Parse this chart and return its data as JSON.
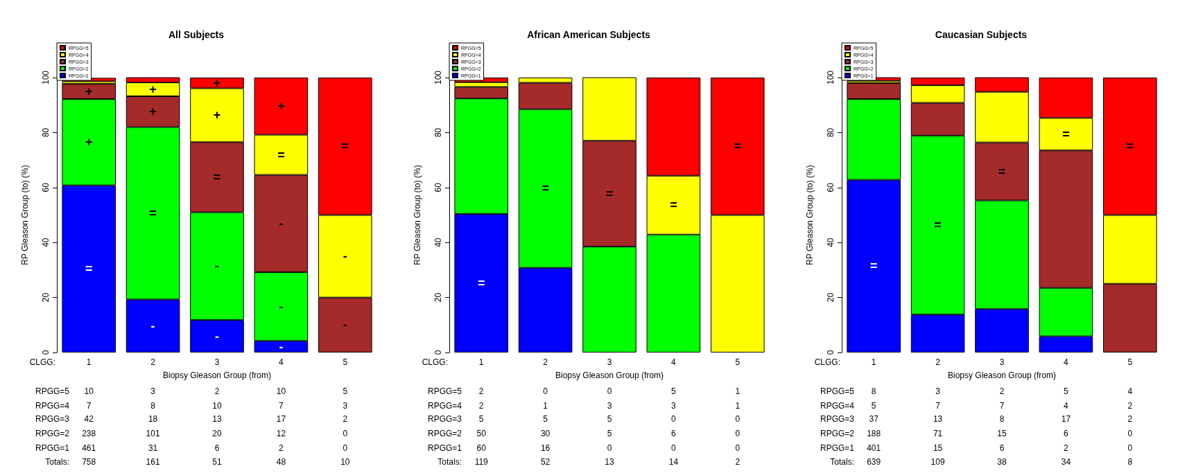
{
  "chart_data": [
    {
      "type": "bar",
      "title": "All Subjects",
      "xlabel": "Biopsy Gleason Group (from)",
      "ylabel": "RP Gleason Group (to) (%)",
      "categories": [
        "1",
        "2",
        "3",
        "4",
        "5"
      ],
      "stacked": true,
      "ylim": [
        0,
        100
      ],
      "yticks": [
        0,
        20,
        40,
        60,
        80,
        100
      ],
      "legend": "top left",
      "series": [
        {
          "name": "RPGG=1",
          "color": "#0000ff",
          "values": [
            60.8,
            19.3,
            11.8,
            4.2,
            0
          ],
          "value_labels": [
            "=",
            "-",
            "-",
            "-",
            null
          ]
        },
        {
          "name": "RPGG=2",
          "color": "#00ff00",
          "values": [
            31.4,
            62.7,
            39.2,
            25.0,
            0
          ],
          "value_labels": [
            "+",
            "=",
            "-",
            "-",
            null
          ]
        },
        {
          "name": "RPGG=3",
          "color": "#a52a2a",
          "values": [
            5.5,
            11.2,
            25.5,
            35.4,
            20
          ],
          "value_labels": [
            "+",
            "+",
            "=",
            "-",
            "-"
          ]
        },
        {
          "name": "RPGG=4",
          "color": "#ffff00",
          "values": [
            0.9,
            5.0,
            19.6,
            14.6,
            30
          ],
          "value_labels": [
            null,
            "+",
            "+",
            "=",
            "-"
          ]
        },
        {
          "name": "RPGG=5",
          "color": "#ff0000",
          "values": [
            1.3,
            1.9,
            3.9,
            20.8,
            50
          ],
          "value_labels": [
            null,
            null,
            "+",
            "+",
            "="
          ]
        }
      ],
      "annotations": [
        "CLGG:",
        "RPGG=5",
        "10",
        "3",
        "2",
        "10",
        "5",
        "RPGG=4",
        "7",
        "8",
        "10",
        "7",
        "3",
        "RPGG=3",
        "42",
        "18",
        "13",
        "17",
        "2",
        "RPGG=2",
        "238",
        "101",
        "20",
        "12",
        "0",
        "RPGG=1",
        "461",
        "31",
        "6",
        "2",
        "0",
        "Totals:",
        "758",
        "161",
        "51",
        "48",
        "10"
      ]
    },
    {
      "type": "bar",
      "title": "African American Subjects",
      "xlabel": "Biopsy Gleason Group (from)",
      "ylabel": "RP Gleason Group (to) (%)",
      "categories": [
        "1",
        "2",
        "3",
        "4",
        "5"
      ],
      "stacked": true,
      "ylim": [
        0,
        100
      ],
      "yticks": [
        0,
        20,
        40,
        60,
        80,
        100
      ],
      "legend": "top left",
      "series": [
        {
          "name": "RPGG=1",
          "color": "#0000ff",
          "values": [
            50.4,
            30.8,
            0,
            0,
            0
          ],
          "value_labels": [
            "=",
            null,
            null,
            null,
            null
          ]
        },
        {
          "name": "RPGG=2",
          "color": "#00ff00",
          "values": [
            42.0,
            57.7,
            38.5,
            42.9,
            0
          ],
          "value_labels": [
            null,
            "=",
            null,
            null,
            null
          ]
        },
        {
          "name": "RPGG=3",
          "color": "#a52a2a",
          "values": [
            4.2,
            9.6,
            38.5,
            0,
            0
          ],
          "value_labels": [
            null,
            null,
            "=",
            null,
            null
          ]
        },
        {
          "name": "RPGG=4",
          "color": "#ffff00",
          "values": [
            1.7,
            1.9,
            23.1,
            21.4,
            50
          ],
          "value_labels": [
            null,
            null,
            null,
            "=",
            null
          ]
        },
        {
          "name": "RPGG=5",
          "color": "#ff0000",
          "values": [
            1.7,
            0,
            0,
            35.7,
            50
          ],
          "value_labels": [
            null,
            null,
            null,
            null,
            "="
          ]
        }
      ],
      "annotations": [
        "CLGG:",
        "RPGG=5",
        "2",
        "0",
        "0",
        "5",
        "1",
        "RPGG=4",
        "2",
        "1",
        "3",
        "3",
        "1",
        "RPGG=3",
        "5",
        "5",
        "5",
        "0",
        "0",
        "RPGG=2",
        "50",
        "30",
        "5",
        "6",
        "0",
        "RPGG=1",
        "60",
        "16",
        "0",
        "0",
        "0",
        "Totals:",
        "119",
        "52",
        "13",
        "14",
        "2"
      ]
    },
    {
      "type": "bar",
      "title": "Caucasian Subjects",
      "xlabel": "Biopsy Gleason Group (from)",
      "ylabel": "RP Gleason Group (to) (%)",
      "categories": [
        "1",
        "2",
        "3",
        "4",
        "5"
      ],
      "stacked": true,
      "ylim": [
        0,
        100
      ],
      "yticks": [
        0,
        20,
        40,
        60,
        80,
        100
      ],
      "legend": "top left",
      "series": [
        {
          "name": "RPGG=1",
          "color": "#0000ff",
          "values": [
            62.8,
            13.8,
            15.8,
            5.9,
            0
          ],
          "value_labels": [
            "=",
            null,
            null,
            null,
            null
          ]
        },
        {
          "name": "RPGG=2",
          "color": "#00ff00",
          "values": [
            29.4,
            65.1,
            39.5,
            17.6,
            0
          ],
          "value_labels": [
            null,
            "=",
            null,
            null,
            null
          ]
        },
        {
          "name": "RPGG=3",
          "color": "#a52a2a",
          "values": [
            5.8,
            11.9,
            21.1,
            50.0,
            25
          ],
          "value_labels": [
            null,
            null,
            "=",
            null,
            null
          ]
        },
        {
          "name": "RPGG=4",
          "color": "#ffff00",
          "values": [
            0.8,
            6.4,
            18.4,
            11.8,
            25
          ],
          "value_labels": [
            null,
            null,
            null,
            "=",
            null
          ]
        },
        {
          "name": "RPGG=5",
          "color": "#ff0000",
          "values": [
            1.3,
            2.8,
            5.3,
            14.7,
            50
          ],
          "value_labels": [
            null,
            null,
            null,
            null,
            "="
          ]
        }
      ],
      "annotations": [
        "CLGG:",
        "RPGG=5",
        "8",
        "3",
        "2",
        "5",
        "4",
        "RPGG=4",
        "5",
        "7",
        "7",
        "4",
        "2",
        "RPGG=3",
        "37",
        "13",
        "8",
        "17",
        "2",
        "RPGG=2",
        "188",
        "71",
        "15",
        "6",
        "0",
        "RPGG=1",
        "401",
        "15",
        "6",
        "2",
        "0",
        "Totals:",
        "639",
        "109",
        "38",
        "34",
        "8"
      ]
    }
  ]
}
